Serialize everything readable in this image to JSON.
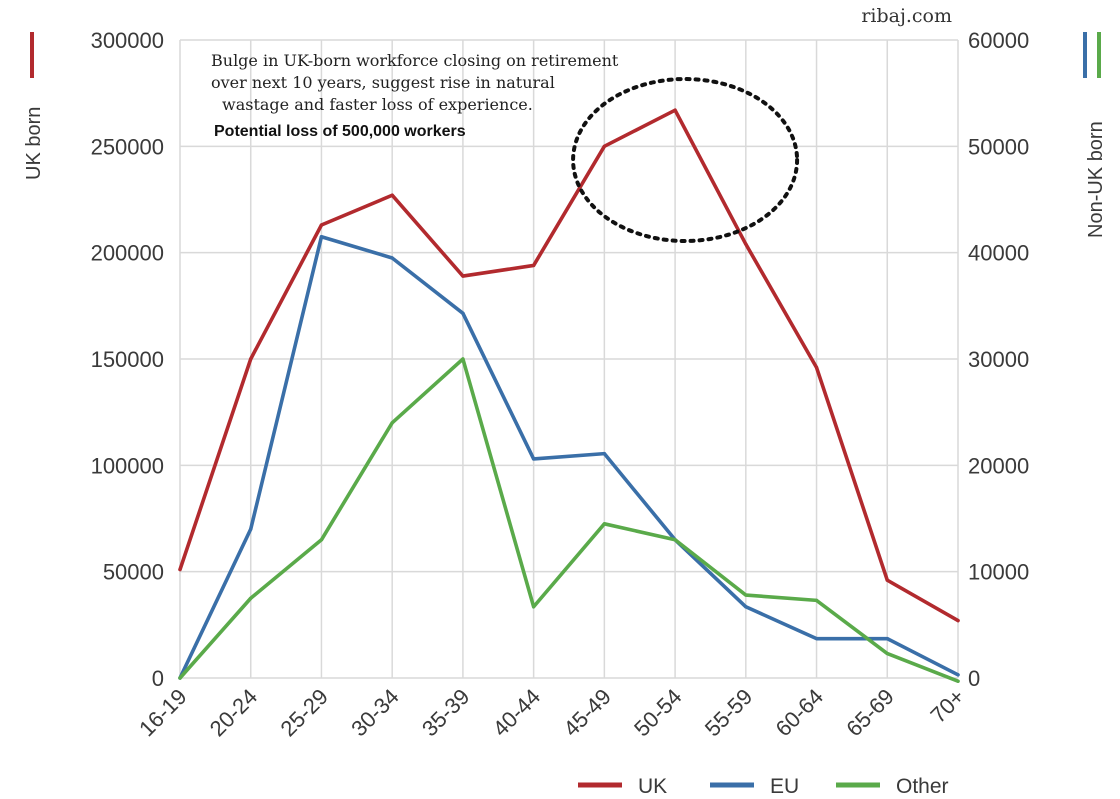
{
  "source": "ribaj.com",
  "annotation": {
    "lines": [
      "Bulge in UK-born workforce closing on retirement",
      "over next 10 years, suggest rise in natural",
      "wastage and faster loss of experience."
    ],
    "emphasis": "Potential loss of 500,000 workers"
  },
  "colors": {
    "UK": "#b22a2e",
    "EU": "#3a6fa8",
    "Other": "#5aaa4a",
    "grid": "#d9d9d9",
    "highlight": "#111111"
  },
  "chart_data": {
    "type": "line",
    "categories": [
      "16-19",
      "20-24",
      "25-29",
      "30-34",
      "35-39",
      "40-44",
      "45-49",
      "50-54",
      "55-59",
      "60-64",
      "65-69",
      "70+"
    ],
    "y_left": {
      "label": "UK born",
      "range": [
        0,
        300000
      ],
      "ticks": [
        "0",
        "50000",
        "100000",
        "150000",
        "200000",
        "250000",
        "300000"
      ]
    },
    "y_right": {
      "label": "Non-UK born",
      "range": [
        0,
        60000
      ],
      "ticks": [
        "0",
        "10000",
        "20000",
        "30000",
        "40000",
        "50000",
        "60000"
      ]
    },
    "series": [
      {
        "name": "UK",
        "axis": "left",
        "values": [
          51000,
          150000,
          213000,
          227000,
          189000,
          194000,
          250000,
          267000,
          204000,
          146000,
          46000,
          27000
        ]
      },
      {
        "name": "EU",
        "axis": "right",
        "values": [
          0,
          14000,
          41500,
          39500,
          34300,
          20600,
          21100,
          13000,
          6700,
          3700,
          3700,
          300
        ]
      },
      {
        "name": "Other",
        "axis": "right",
        "values": [
          0,
          7500,
          13000,
          24000,
          30000,
          6700,
          14500,
          13000,
          7800,
          7300,
          2300,
          -300
        ]
      }
    ],
    "highlight": {
      "type": "dotted-ellipse",
      "around": [
        "45-49",
        "50-54",
        "55-59"
      ]
    },
    "grid": true,
    "legend_position": "bottom-right"
  }
}
